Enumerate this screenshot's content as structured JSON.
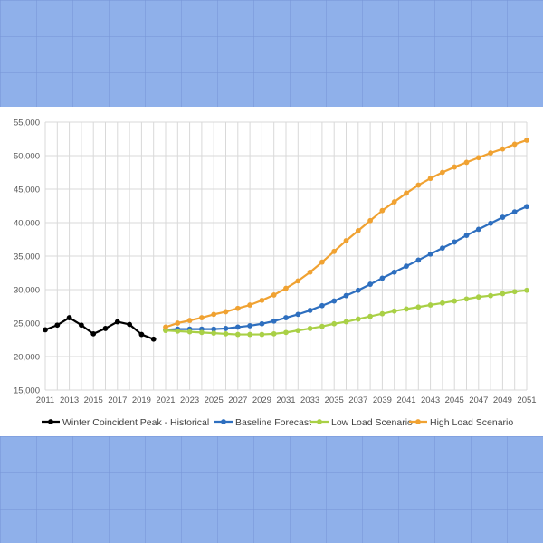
{
  "chart_data": {
    "type": "line",
    "title": "",
    "xlabel": "",
    "ylabel": "",
    "ylim": [
      15000,
      55000
    ],
    "xlim": [
      2011,
      2051
    ],
    "y_ticks": [
      15000,
      20000,
      25000,
      30000,
      35000,
      40000,
      45000,
      50000,
      55000
    ],
    "y_tick_labels": [
      "15,000",
      "20,000",
      "25,000",
      "30,000",
      "35,000",
      "40,000",
      "45,000",
      "50,000",
      "55,000"
    ],
    "x_ticks": [
      2011,
      2013,
      2015,
      2017,
      2019,
      2021,
      2023,
      2025,
      2027,
      2029,
      2031,
      2033,
      2035,
      2037,
      2039,
      2041,
      2043,
      2045,
      2047,
      2049,
      2051
    ],
    "x_tick_labels": [
      "2011",
      "2013",
      "2015",
      "2017",
      "2019",
      "2021",
      "2023",
      "2025",
      "2027",
      "2029",
      "2031",
      "2033",
      "2035",
      "2037",
      "2039",
      "2041",
      "2043",
      "2045",
      "2047",
      "2049",
      "2051"
    ],
    "grid": {
      "vertical": true,
      "horizontal": true
    },
    "legend_position": "bottom",
    "series": [
      {
        "name": "Winter Coincident Peak - Historical",
        "color": "#000000",
        "x": [
          2011,
          2012,
          2013,
          2014,
          2015,
          2016,
          2017,
          2018,
          2019,
          2020
        ],
        "values": [
          24000,
          24700,
          25800,
          24700,
          23400,
          24200,
          25200,
          24800,
          23300,
          22600
        ]
      },
      {
        "name": "Baseline Forecast",
        "color": "#2e6fbf",
        "x": [
          2021,
          2022,
          2023,
          2024,
          2025,
          2026,
          2027,
          2028,
          2029,
          2030,
          2031,
          2032,
          2033,
          2034,
          2035,
          2036,
          2037,
          2038,
          2039,
          2040,
          2041,
          2042,
          2043,
          2044,
          2045,
          2046,
          2047,
          2048,
          2049,
          2050,
          2051
        ],
        "values": [
          24000,
          24100,
          24100,
          24100,
          24100,
          24200,
          24400,
          24600,
          24900,
          25300,
          25800,
          26300,
          26900,
          27600,
          28300,
          29100,
          29900,
          30800,
          31700,
          32600,
          33500,
          34400,
          35300,
          36200,
          37100,
          38100,
          39000,
          39900,
          40800,
          41600,
          42400
        ]
      },
      {
        "name": "Low Load Scenario",
        "color": "#a9d046",
        "x": [
          2021,
          2022,
          2023,
          2024,
          2025,
          2026,
          2027,
          2028,
          2029,
          2030,
          2031,
          2032,
          2033,
          2034,
          2035,
          2036,
          2037,
          2038,
          2039,
          2040,
          2041,
          2042,
          2043,
          2044,
          2045,
          2046,
          2047,
          2048,
          2049,
          2050,
          2051
        ],
        "values": [
          23900,
          23800,
          23700,
          23600,
          23500,
          23400,
          23300,
          23300,
          23300,
          23400,
          23600,
          23900,
          24200,
          24500,
          24900,
          25200,
          25600,
          26000,
          26400,
          26800,
          27100,
          27400,
          27700,
          28000,
          28300,
          28600,
          28900,
          29100,
          29400,
          29700,
          29900
        ]
      },
      {
        "name": "High Load Scenario",
        "color": "#f0a232",
        "x": [
          2021,
          2022,
          2023,
          2024,
          2025,
          2026,
          2027,
          2028,
          2029,
          2030,
          2031,
          2032,
          2033,
          2034,
          2035,
          2036,
          2037,
          2038,
          2039,
          2040,
          2041,
          2042,
          2043,
          2044,
          2045,
          2046,
          2047,
          2048,
          2049,
          2050,
          2051
        ],
        "values": [
          24400,
          25000,
          25400,
          25800,
          26300,
          26700,
          27200,
          27700,
          28400,
          29200,
          30200,
          31300,
          32600,
          34100,
          35700,
          37300,
          38800,
          40300,
          41800,
          43100,
          44400,
          45600,
          46600,
          47500,
          48300,
          49000,
          49700,
          50400,
          51000,
          51700,
          52300
        ]
      }
    ]
  }
}
